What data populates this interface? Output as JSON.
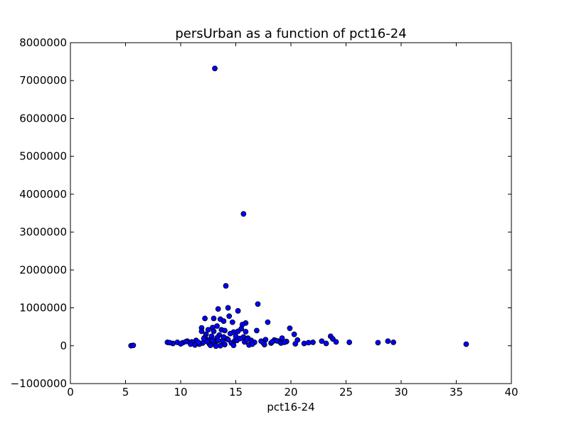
{
  "chart_data": {
    "type": "scatter",
    "title": "persUrban as a function of pct16-24",
    "xlabel": "pct16-24",
    "ylabel": "",
    "xlim": [
      0,
      40
    ],
    "ylim": [
      -1000000,
      8000000
    ],
    "xticks": [
      0,
      5,
      10,
      15,
      20,
      25,
      30,
      35,
      40
    ],
    "yticks": [
      -1000000,
      0,
      1000000,
      2000000,
      3000000,
      4000000,
      5000000,
      6000000,
      7000000,
      8000000
    ],
    "xtick_labels": [
      "0",
      "5",
      "10",
      "15",
      "20",
      "25",
      "30",
      "35",
      "40"
    ],
    "ytick_labels": [
      "−1000000",
      "0",
      "1000000",
      "2000000",
      "3000000",
      "4000000",
      "5000000",
      "6000000",
      "7000000",
      "8000000"
    ],
    "grid": false,
    "marker_color": "#0000ff",
    "marker_edge_color": "#000000",
    "points": [
      [
        13.1,
        7320000
      ],
      [
        15.7,
        3480000
      ],
      [
        14.1,
        1580000
      ],
      [
        17.0,
        1100000
      ],
      [
        14.3,
        1000000
      ],
      [
        13.4,
        970000
      ],
      [
        15.2,
        920000
      ],
      [
        14.4,
        780000
      ],
      [
        12.2,
        720000
      ],
      [
        13.0,
        720000
      ],
      [
        13.6,
        700000
      ],
      [
        13.9,
        650000
      ],
      [
        14.7,
        620000
      ],
      [
        17.9,
        620000
      ],
      [
        15.9,
        600000
      ],
      [
        15.6,
        560000
      ],
      [
        13.3,
        520000
      ],
      [
        12.9,
        480000
      ],
      [
        11.9,
        470000
      ],
      [
        19.9,
        460000
      ],
      [
        15.5,
        450000
      ],
      [
        12.5,
        420000
      ],
      [
        13.7,
        420000
      ],
      [
        14.0,
        400000
      ],
      [
        16.9,
        400000
      ],
      [
        11.9,
        380000
      ],
      [
        13.0,
        380000
      ],
      [
        15.2,
        380000
      ],
      [
        15.9,
        370000
      ],
      [
        14.8,
        360000
      ],
      [
        14.5,
        320000
      ],
      [
        20.3,
        300000
      ],
      [
        12.3,
        300000
      ],
      [
        13.5,
        280000
      ],
      [
        15.0,
        250000
      ],
      [
        23.6,
        250000
      ],
      [
        12.8,
        250000
      ],
      [
        15.7,
        230000
      ],
      [
        12.2,
        220000
      ],
      [
        13.3,
        210000
      ],
      [
        19.2,
        200000
      ],
      [
        16.1,
        200000
      ],
      [
        23.8,
        180000
      ],
      [
        14.2,
        180000
      ],
      [
        17.7,
        160000
      ],
      [
        18.5,
        150000
      ],
      [
        20.6,
        150000
      ],
      [
        11.4,
        140000
      ],
      [
        12.5,
        150000
      ],
      [
        16.4,
        140000
      ],
      [
        13.8,
        130000
      ],
      [
        14.9,
        130000
      ],
      [
        10.6,
        120000
      ],
      [
        18.9,
        120000
      ],
      [
        22.8,
        120000
      ],
      [
        24.1,
        100000
      ],
      [
        19.6,
        110000
      ],
      [
        13.2,
        110000
      ],
      [
        11.0,
        100000
      ],
      [
        8.8,
        90000
      ],
      [
        9.7,
        90000
      ],
      [
        15.8,
        100000
      ],
      [
        10.2,
        80000
      ],
      [
        25.3,
        90000
      ],
      [
        29.3,
        90000
      ],
      [
        28.8,
        120000
      ],
      [
        27.9,
        80000
      ],
      [
        17.5,
        70000
      ],
      [
        12.0,
        70000
      ],
      [
        18.2,
        70000
      ],
      [
        21.2,
        60000
      ],
      [
        21.6,
        80000
      ],
      [
        22.0,
        90000
      ],
      [
        16.7,
        90000
      ],
      [
        14.6,
        70000
      ],
      [
        13.0,
        60000
      ],
      [
        12.6,
        50000
      ],
      [
        11.7,
        40000
      ],
      [
        10.9,
        40000
      ],
      [
        10.0,
        50000
      ],
      [
        9.3,
        60000
      ],
      [
        20.4,
        50000
      ],
      [
        23.2,
        60000
      ],
      [
        19.1,
        70000
      ],
      [
        11.3,
        20000
      ],
      [
        14.0,
        30000
      ],
      [
        16.2,
        20000
      ],
      [
        12.7,
        10000
      ],
      [
        13.6,
        0
      ],
      [
        35.9,
        40000
      ],
      [
        5.5,
        0
      ],
      [
        5.7,
        10000
      ],
      [
        9.0,
        80000
      ],
      [
        10.5,
        110000
      ],
      [
        11.6,
        90000
      ],
      [
        12.4,
        110000
      ],
      [
        13.4,
        140000
      ],
      [
        14.3,
        160000
      ],
      [
        15.1,
        140000
      ],
      [
        16.0,
        160000
      ],
      [
        17.3,
        120000
      ],
      [
        18.7,
        130000
      ],
      [
        19.4,
        90000
      ],
      [
        12.1,
        190000
      ],
      [
        13.9,
        230000
      ],
      [
        15.4,
        190000
      ],
      [
        13.2,
        -10000
      ],
      [
        14.8,
        10000
      ],
      [
        16.5,
        40000
      ],
      [
        17.6,
        30000
      ],
      [
        18.3,
        100000
      ],
      [
        12.9,
        140000
      ]
    ]
  }
}
